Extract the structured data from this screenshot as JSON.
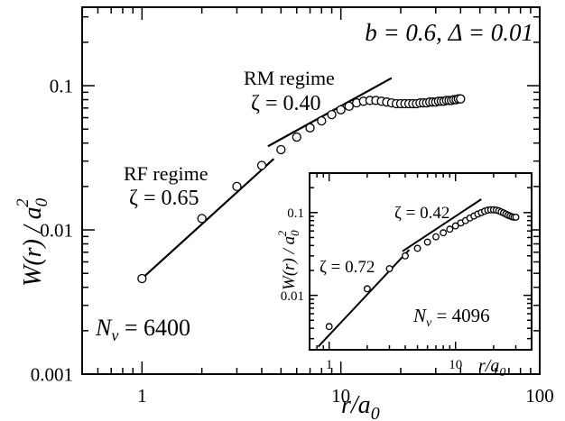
{
  "chart_data": [
    {
      "type": "scatter",
      "xscale": "log",
      "yscale": "log",
      "xlim": [
        0.5,
        100
      ],
      "ylim": [
        0.001,
        0.35
      ],
      "xticks": [
        1,
        10,
        100
      ],
      "xtick_labels": [
        "1",
        "10",
        "100"
      ],
      "yticks": [
        0.001,
        0.01,
        0.1
      ],
      "ytick_labels": [
        "0.001",
        "0.01",
        "0.1"
      ],
      "xlabel_main": "r/a",
      "xlabel_sub": "0",
      "ylabel_main": "W(r) / a",
      "ylabel_sub": "0",
      "ylabel_sup": "2",
      "params_text": "b = 0.6,  Δ = 0.01",
      "nv_label_main": "N",
      "nv_label_sub": "v",
      "nv_label_rest": " = 6400",
      "annotations": [
        {
          "line1": "RF regime",
          "line2": "ζ = 0.65"
        },
        {
          "line1": "RM regime",
          "line2": "ζ = 0.40"
        }
      ],
      "series": [
        {
          "style": "open-circles",
          "x": [
            1,
            2,
            3,
            4,
            5,
            6,
            7,
            8,
            9,
            10,
            11,
            12,
            13,
            14,
            15,
            16,
            17,
            18,
            19,
            20,
            21,
            22,
            23,
            24,
            25,
            26,
            27,
            28,
            29,
            30,
            31,
            32,
            33,
            34,
            35,
            36,
            37,
            38,
            39,
            40
          ],
          "y": [
            0.0046,
            0.012,
            0.02,
            0.028,
            0.036,
            0.044,
            0.051,
            0.057,
            0.063,
            0.068,
            0.072,
            0.076,
            0.078,
            0.079,
            0.079,
            0.078,
            0.077,
            0.076,
            0.075,
            0.075,
            0.075,
            0.075,
            0.075,
            0.075,
            0.076,
            0.076,
            0.076,
            0.077,
            0.077,
            0.077,
            0.078,
            0.078,
            0.078,
            0.079,
            0.079,
            0.079,
            0.08,
            0.08,
            0.081,
            0.081
          ]
        }
      ],
      "fit_lines": [
        {
          "x": [
            1,
            4.6
          ],
          "y": [
            0.0046,
            0.0311
          ]
        },
        {
          "x": [
            4.3,
            18
          ],
          "y": [
            0.038,
            0.113
          ]
        }
      ]
    },
    {
      "type": "scatter",
      "xscale": "log",
      "yscale": "log",
      "xlim": [
        0.7,
        40
      ],
      "ylim": [
        0.0022,
        0.3
      ],
      "xticks": [
        1,
        10
      ],
      "xtick_labels": [
        "1",
        "10"
      ],
      "yticks": [
        0.01,
        0.1
      ],
      "ytick_labels": [
        "0.01",
        "0.1"
      ],
      "xlabel_main": "r/a",
      "xlabel_sub": "0",
      "ylabel_main": "W(r) / a",
      "ylabel_sub": "0",
      "ylabel_sup": "2",
      "nv_label_main": "N",
      "nv_label_sub": "v",
      "nv_label_rest": " = 4096",
      "annotations": [
        {
          "text": "ζ = 0.72"
        },
        {
          "text": "ζ = 0.42"
        }
      ],
      "series": [
        {
          "style": "open-circles",
          "x": [
            1,
            2,
            3,
            4,
            5,
            6,
            7,
            8,
            9,
            10,
            11,
            12,
            13,
            14,
            15,
            16,
            17,
            18,
            19,
            20,
            21,
            22,
            23,
            24,
            25,
            26,
            27,
            28,
            29,
            30
          ],
          "y": [
            0.0042,
            0.012,
            0.021,
            0.03,
            0.037,
            0.044,
            0.051,
            0.057,
            0.063,
            0.069,
            0.075,
            0.08,
            0.086,
            0.091,
            0.096,
            0.1,
            0.104,
            0.107,
            0.108,
            0.108,
            0.107,
            0.105,
            0.102,
            0.099,
            0.096,
            0.093,
            0.091,
            0.089,
            0.088,
            0.088
          ]
        }
      ],
      "fit_lines": [
        {
          "x": [
            0.82,
            4.3
          ],
          "y": [
            0.0024,
            0.0355
          ]
        },
        {
          "x": [
            3.8,
            16
          ],
          "y": [
            0.034,
            0.145
          ]
        }
      ]
    }
  ]
}
